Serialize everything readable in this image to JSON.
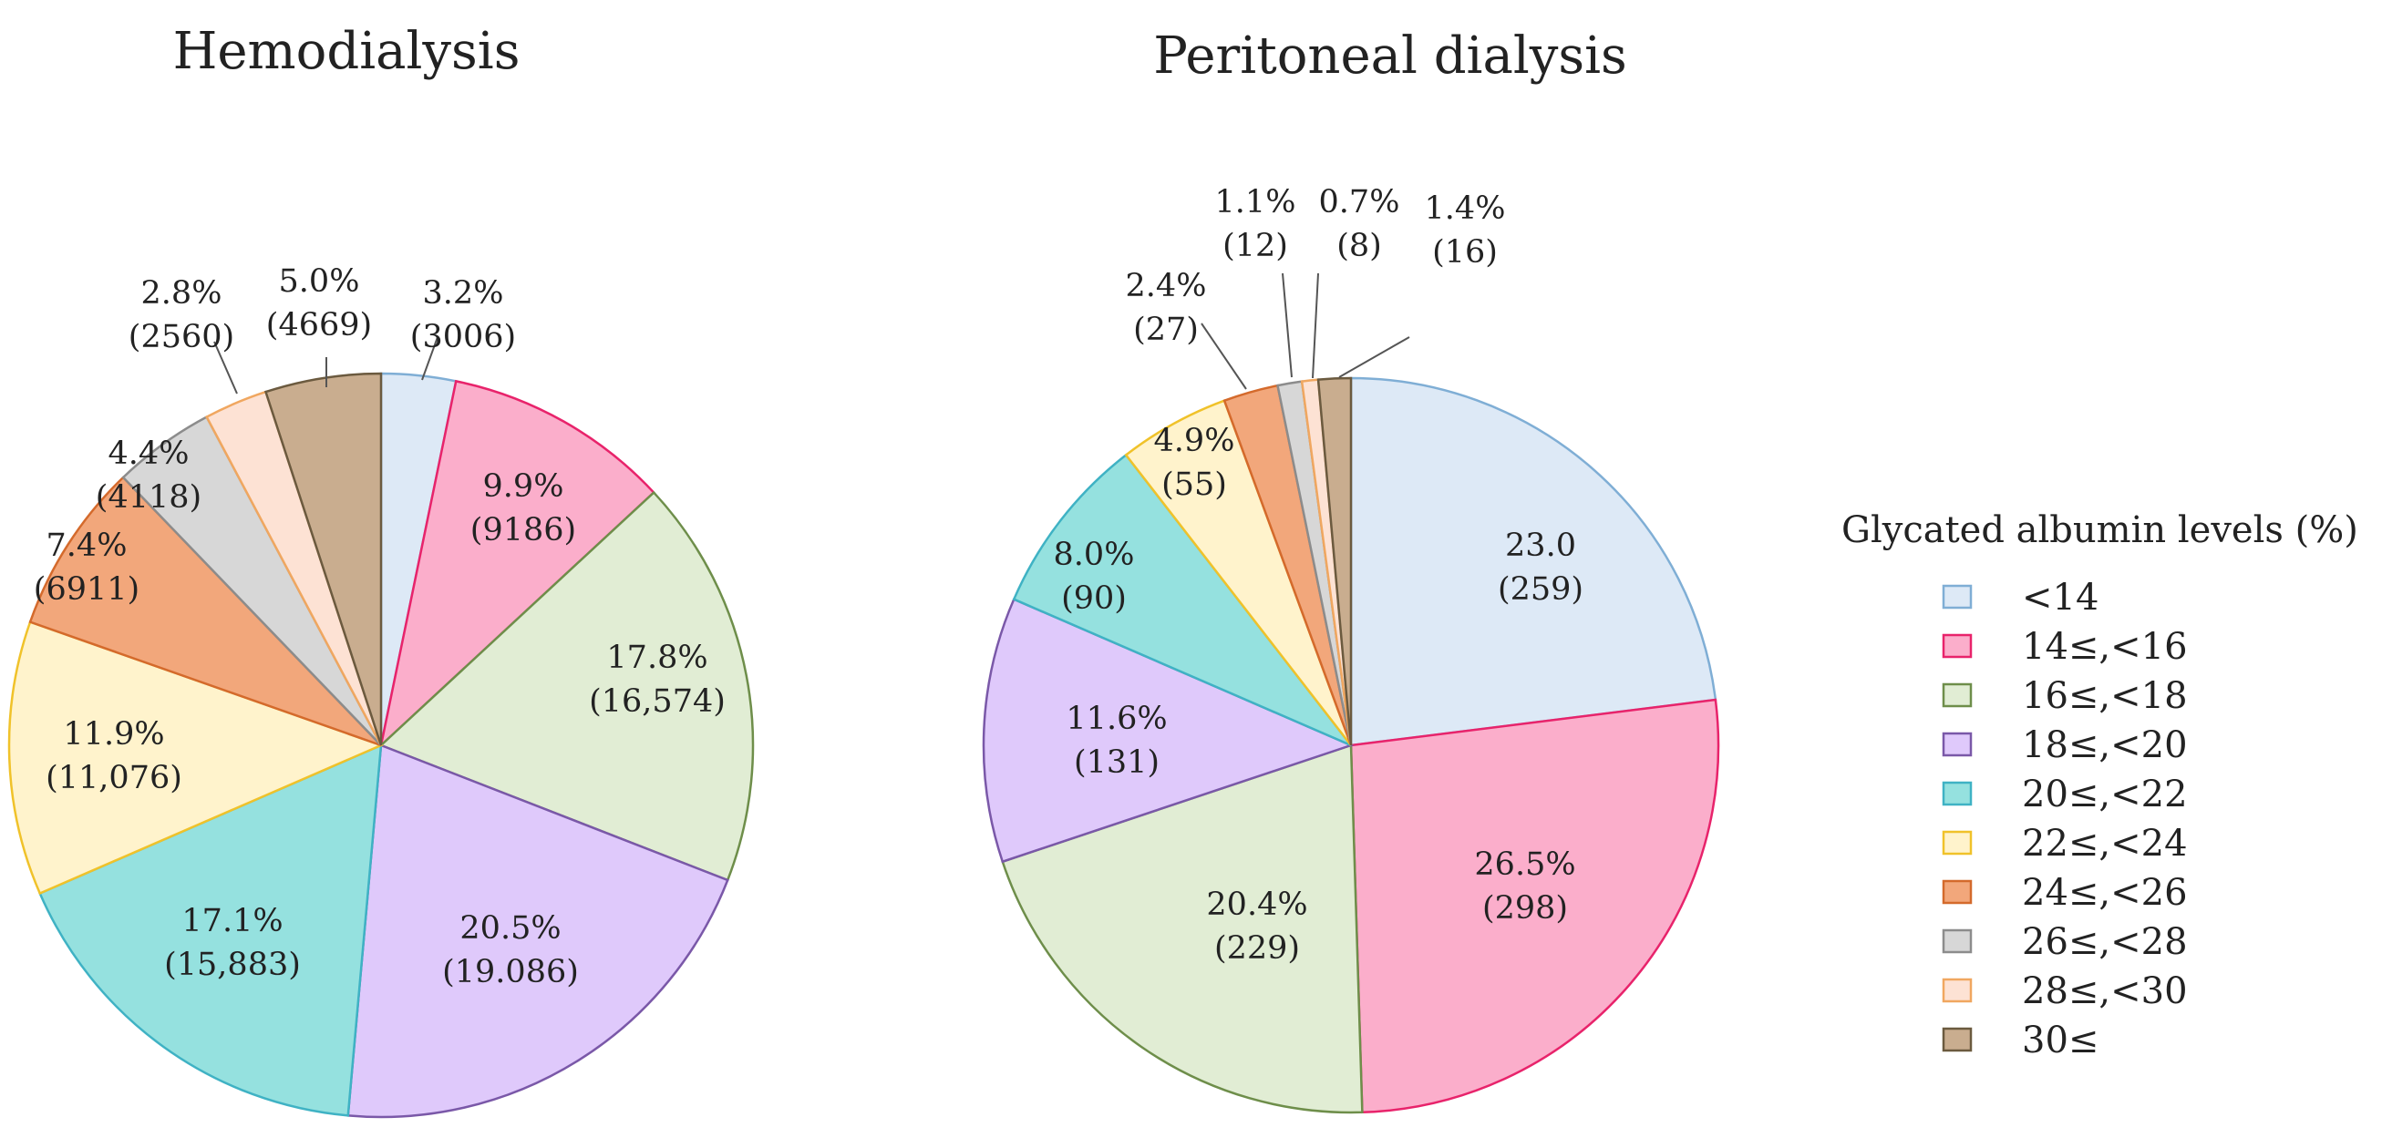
{
  "chart_data": [
    {
      "type": "pie",
      "title": "Hemodialysis",
      "categories": [
        "<14",
        "14≤,<16",
        "16≤,<18",
        "18≤,<20",
        "20≤,<22",
        "22≤,<24",
        "24≤,<26",
        "26≤,<28",
        "28≤,<30",
        "30≤"
      ],
      "values": [
        3006,
        9186,
        16574,
        19086,
        15883,
        11076,
        6911,
        4118,
        2560,
        4669
      ],
      "percent_labels": [
        "3.2%",
        "9.9%",
        "17.8%",
        "20.5%",
        "17.1%",
        "11.9%",
        "7.4%",
        "4.4%",
        "2.8%",
        "5.0%"
      ],
      "count_labels": [
        "(3006)",
        "(9186)",
        "(16,574)",
        "(19.086)",
        "(15,883)",
        "(11,076)",
        "(6911)",
        "(4118)",
        "(2560)",
        "(4669)"
      ],
      "start_angle_deg": 0,
      "direction": "clockwise"
    },
    {
      "type": "pie",
      "title": "Peritoneal dialysis",
      "categories": [
        "<14",
        "14≤,<16",
        "16≤,<18",
        "18≤,<20",
        "20≤,<22",
        "22≤,<24",
        "24≤,<26",
        "26≤,<28",
        "28≤,<30",
        "30≤"
      ],
      "values": [
        259,
        298,
        229,
        131,
        90,
        55,
        27,
        12,
        8,
        16
      ],
      "percent_labels": [
        "23.0",
        "26.5%",
        "20.4%",
        "11.6%",
        "8.0%",
        "4.9%",
        "2.4%",
        "1.1%",
        "0.7%",
        "1.4%"
      ],
      "count_labels": [
        "(259)",
        "(298)",
        "(229)",
        "(131)",
        "(90)",
        "(55)",
        "(27)",
        "(12)",
        "(8)",
        "(16)"
      ],
      "start_angle_deg": 0,
      "direction": "clockwise"
    }
  ],
  "legend": {
    "title": "Glycated albumin levels (%)",
    "items": [
      "<14",
      "14≤,<16",
      "16≤,<18",
      "18≤,<20",
      "20≤,<22",
      "22≤,<24",
      "24≤,<26",
      "26≤,<28",
      "28≤,<30",
      "30≤"
    ],
    "fills": [
      "#dde9f6",
      "#fbaecb",
      "#e1edd4",
      "#dfc9fb",
      "#95e1df",
      "#fff3cc",
      "#f2a77b",
      "#d7d7d7",
      "#fde2d4",
      "#c9ad8f"
    ],
    "strokes": [
      "#7faed5",
      "#e8236b",
      "#6e8e4a",
      "#7a58a8",
      "#3fb2c4",
      "#f0c22a",
      "#d46a2c",
      "#8c8c8c",
      "#f0a760",
      "#6b5a3f"
    ]
  }
}
